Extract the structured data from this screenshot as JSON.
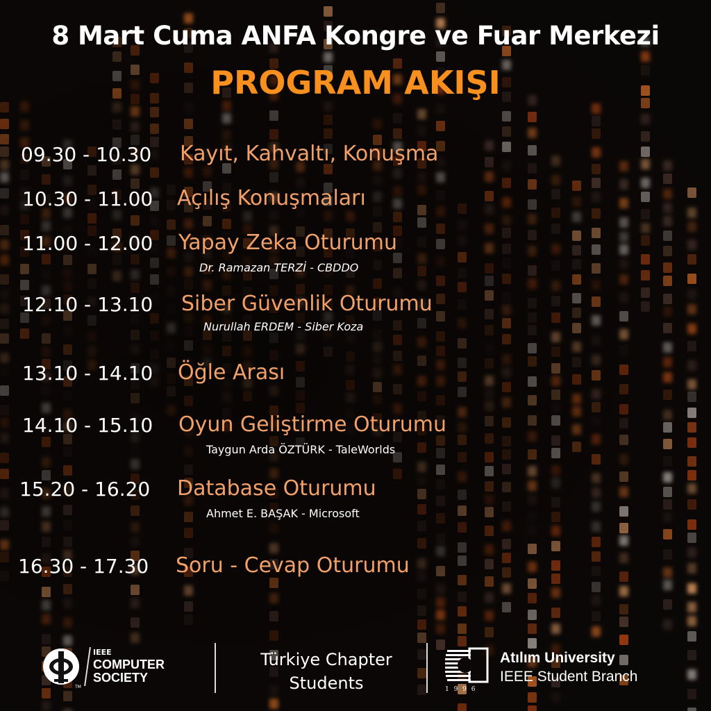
{
  "header": {
    "title": "8 Mart Cuma ANFA Kongre ve Fuar Merkezi",
    "subtitle": "PROGRAM AKIŞI"
  },
  "schedule": [
    {
      "time": "09.30 - 10.30",
      "event": "Kayıt, Kahvaltı, Konuşma"
    },
    {
      "time": "10.30 - 11.00",
      "event": "Açılış Konuşmaları"
    },
    {
      "time": "11.00 - 12.00",
      "event": "Yapay Zeka Oturumu",
      "speaker": "Dr. Ramazan TERZİ - CBDDO"
    },
    {
      "time": "12.10 - 13.10",
      "event": "Siber Güvenlik Oturumu",
      "speaker": "Nurullah ERDEM - Siber Koza"
    },
    {
      "time": "13.10 - 14.10",
      "event": "Öğle Arası"
    },
    {
      "time": "14.10 - 15.10",
      "event": "Oyun Geliştirme Oturumu",
      "speaker": "Taygun Arda ÖZTÜRK - TaleWorlds"
    },
    {
      "time": "15.20 - 16.20",
      "event": "Database Oturumu",
      "speaker": "Ahmet E. BAŞAK - Microsoft"
    },
    {
      "time": "16.30 - 17.30",
      "event": "Soru - Cevap Oturumu"
    }
  ],
  "footer": {
    "computer_society": {
      "line1": "IEEE",
      "line2": "COMPUTER",
      "line3": "SOCIETY",
      "tm": "TM"
    },
    "chapter": {
      "line1": "Türkiye Chapter",
      "line2": "Students"
    },
    "atilim": {
      "line1": "Atılım University",
      "line2": "IEEE Student Branch",
      "year": "1 9 9 6"
    }
  },
  "colors": {
    "accent": "#f7901e",
    "event": "#f2a069",
    "background": "#0b0807"
  }
}
